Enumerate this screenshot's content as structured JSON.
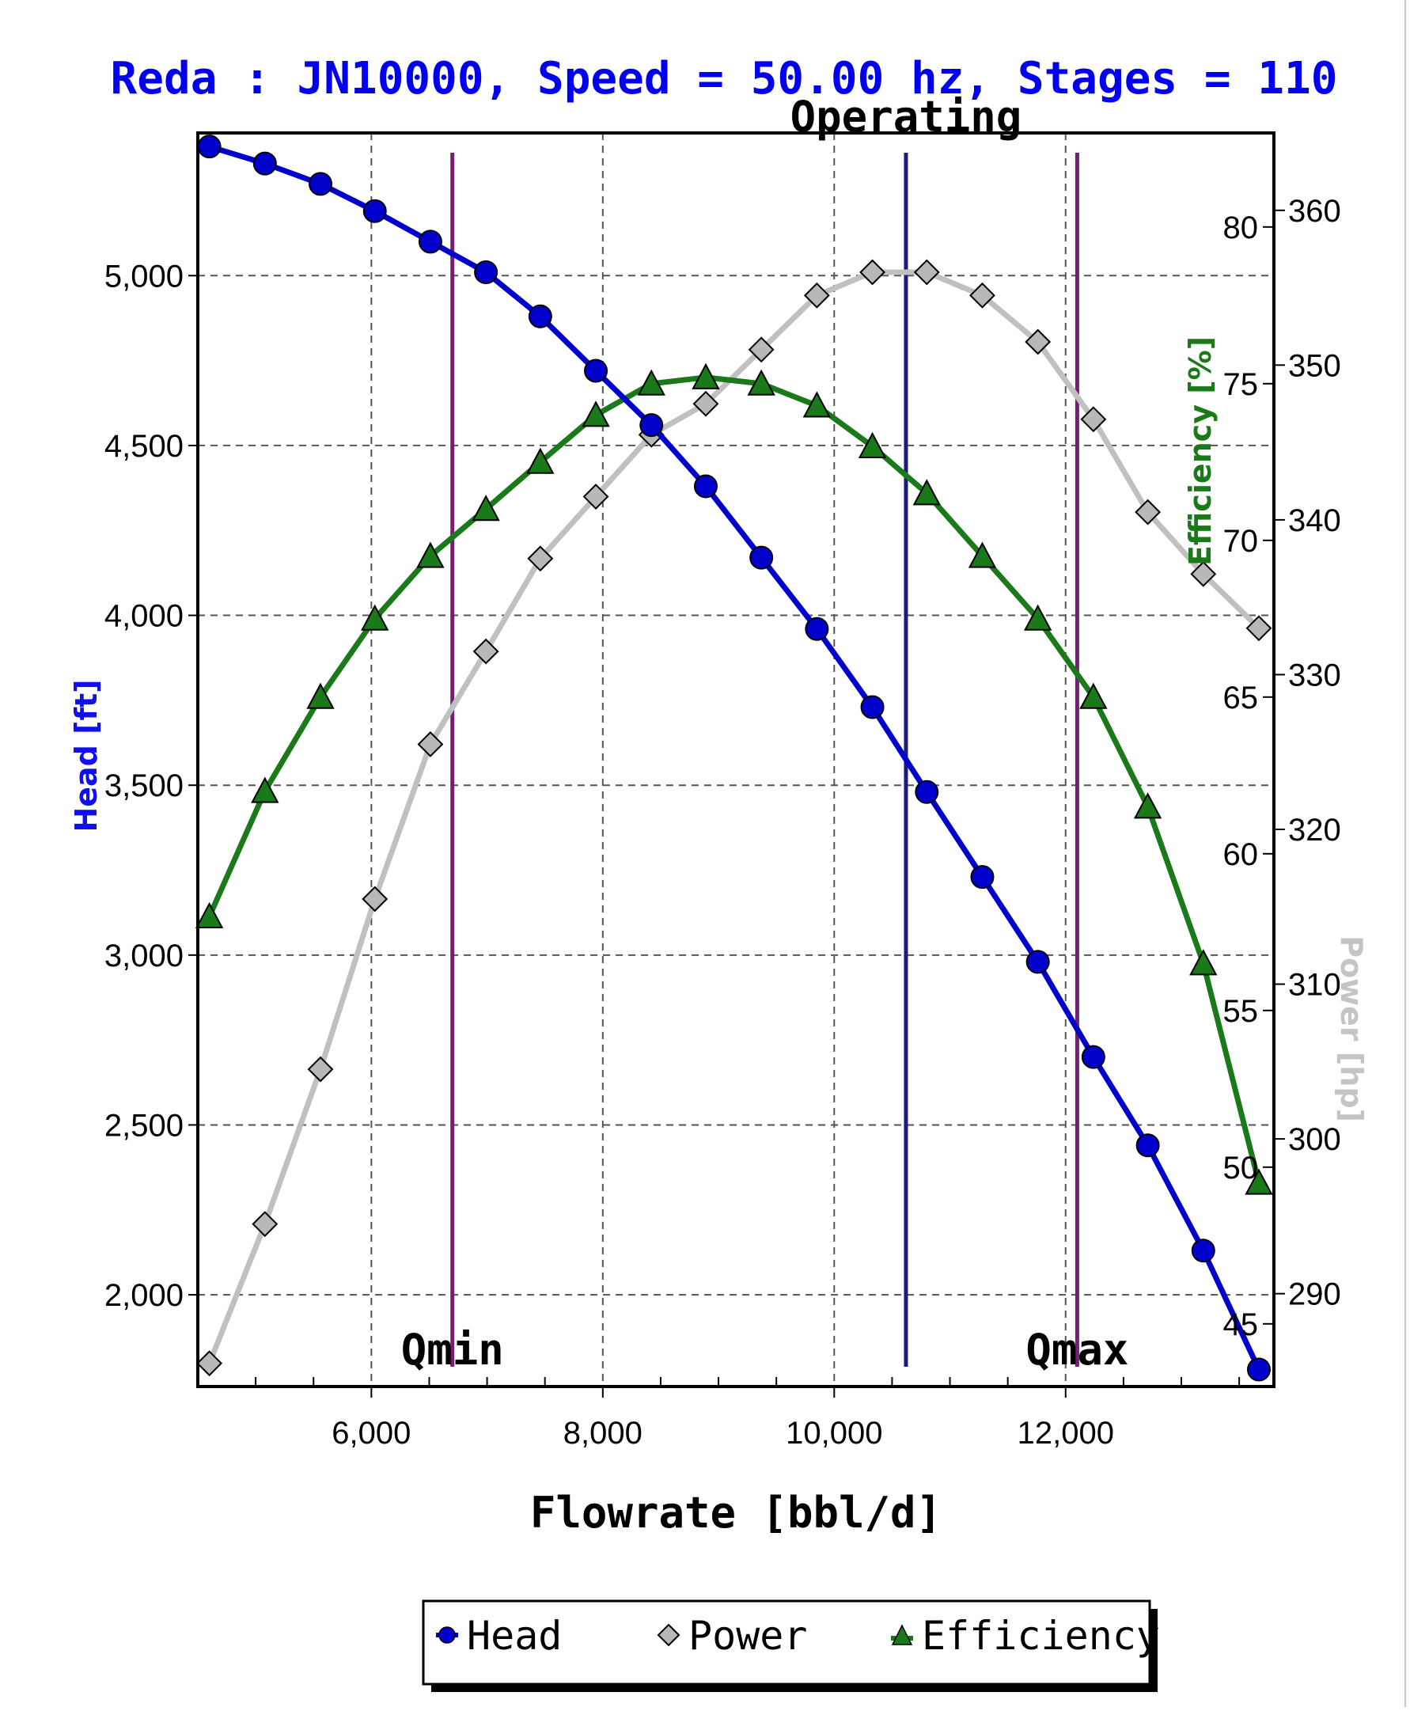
{
  "chart_data": {
    "type": "line",
    "title": "Reda : JN10000, Speed = 50.00 hz, Stages = 110",
    "xlabel": "Flowrate [bbl/d]",
    "ylabel_left": "Head [ft]",
    "ylabel_right_efficiency": "Efficiency [%]",
    "ylabel_right_power": "Power [hp]",
    "xlim": [
      4500,
      13800
    ],
    "xticks": [
      6000,
      8000,
      10000,
      12000
    ],
    "xtick_labels": [
      "6,000",
      "8,000",
      "10,000",
      "12,000"
    ],
    "ylim_head": [
      1730,
      5420
    ],
    "yticks_head": [
      2000,
      2500,
      3000,
      3500,
      4000,
      4500,
      5000
    ],
    "ytick_labels_head": [
      "2,000",
      "2,500",
      "3,000",
      "3,500",
      "4,000",
      "4,500",
      "5,000"
    ],
    "ylim_efficiency": [
      43,
      83
    ],
    "yticks_efficiency": [
      45,
      50,
      55,
      60,
      65,
      70,
      75,
      80
    ],
    "ylim_power": [
      284,
      365
    ],
    "yticks_power": [
      290,
      300,
      310,
      320,
      330,
      340,
      350,
      360
    ],
    "grid": true,
    "x": [
      4600,
      5080,
      5560,
      6030,
      6510,
      6990,
      7460,
      7940,
      8420,
      8890,
      9370,
      9850,
      10330,
      10800,
      11280,
      11760,
      12240,
      12710,
      13190,
      13670
    ],
    "series": [
      {
        "name": "Head",
        "axis": "left",
        "color": "#0000cc",
        "marker": "circle",
        "values": [
          5380,
          5330,
          5270,
          5190,
          5100,
          5010,
          4880,
          4720,
          4560,
          4380,
          4170,
          3960,
          3730,
          3480,
          3230,
          2980,
          2700,
          2440,
          2130,
          1780
        ]
      },
      {
        "name": "Power",
        "axis": "right-power",
        "color": "#c0c0c0",
        "marker": "diamond",
        "values": [
          285.5,
          294.5,
          304.5,
          315.5,
          325.5,
          331.5,
          337.5,
          341.5,
          345.5,
          347.5,
          351,
          354.5,
          356,
          356,
          354.5,
          351.5,
          346.5,
          340.5,
          336.5,
          333
        ]
      },
      {
        "name": "Efficiency",
        "axis": "right-efficiency",
        "color": "#1a7a1a",
        "marker": "triangle",
        "values": [
          58,
          62,
          65,
          67.5,
          69.5,
          71,
          72.5,
          74,
          75,
          75.2,
          75,
          74.3,
          73,
          71.5,
          69.5,
          67.5,
          65,
          61.5,
          56.5,
          49.5
        ]
      }
    ],
    "reference_lines": [
      {
        "label": "Qmin",
        "x": 6700,
        "color": "#7b1a7b"
      },
      {
        "label": "Operating",
        "x": 10620,
        "color": "#1a1a80"
      },
      {
        "label": "Qmax",
        "x": 12100,
        "color": "#7b1a7b"
      }
    ],
    "legend": {
      "position": "bottom-center",
      "entries": [
        "Head",
        "Power",
        "Efficiency"
      ]
    }
  }
}
